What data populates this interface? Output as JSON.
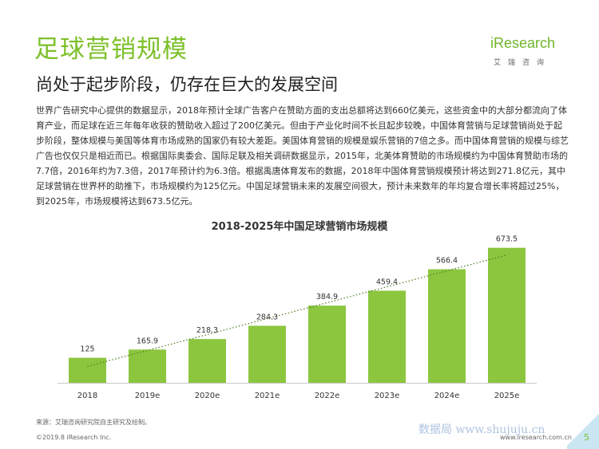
{
  "header": {
    "title": "足球营销规模",
    "subtitle": "尚处于起步阶段，仍存在巨大的发展空间"
  },
  "logo": {
    "brand": "iResearch",
    "brand_cn": "艾瑞咨询"
  },
  "body_text": "世界广告研究中心提供的数据显示，2018年预计全球广告客户在赞助方面的支出总额将达到660亿美元，这些资金中的大部分都流向了体育产业，而足球在近三年每年收获的赞助收入超过了200亿美元。但由于产业化时间不长且起步较晚，中国体育营销与足球营销尚处于起步阶段，整体规模与美国等体育市场成熟的国家仍有较大差距。美国体育营销的规模是娱乐营销的7倍之多。而中国体育营销的规模与综艺广告也仅仅只是相近而已。根据国际奥委会、国际足联及相关调研数据显示，2015年，北美体育赞助的市场规模约为中国体育赞助市场的7.7倍，2016年约为7.3倍，2017年预计约为6.3倍。根据禹唐体育发布的数据，2018年中国体育营销规模预计将达到271.8亿元，其中足球营销在世界杯的助推下，市场规模约为125亿元。中国足球营销未来的发展空间很大，预计未来数年的年均复合增长率将超过25%，到2025年，市场规模将达到673.5亿元。",
  "chart_data": {
    "type": "bar",
    "title": "2018-2025年中国足球营销市场规模",
    "categories": [
      "2018",
      "2019e",
      "2020e",
      "2021e",
      "2022e",
      "2023e",
      "2024e",
      "2025e"
    ],
    "values": [
      125,
      165.9,
      218.3,
      284.3,
      384.9,
      459.4,
      566.4,
      673.5
    ],
    "value_labels": [
      "125",
      "165.9",
      "218.3",
      "284.3",
      "384.9",
      "459.4",
      "566.4",
      "673.5"
    ],
    "ylim": [
      0,
      700
    ],
    "xlabel": "",
    "ylabel": "",
    "grid": false,
    "trendline": "dotted-linear",
    "bar_color": "#8cc63f",
    "trend_color": "#4a7a1e"
  },
  "footer": {
    "source": "来源：艾瑞咨询研究院自主研究及绘制。",
    "copyright": "©2019.8 iResearch Inc.",
    "watermark": "数据局 www.shujuju.cn",
    "website": "www.iresearch.com.cn",
    "page_number": "5"
  }
}
